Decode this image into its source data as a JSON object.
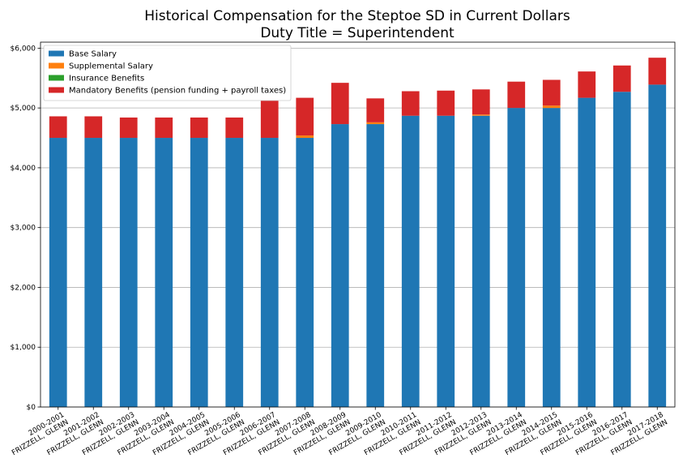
{
  "chart_data": {
    "type": "bar",
    "stacked": true,
    "title": "Historical Compensation for the Steptoe SD in Current Dollars",
    "subtitle": "Duty Title = Superintendent",
    "xlabel": "",
    "ylabel": "",
    "ylim": [
      0,
      6100
    ],
    "yticks": [
      0,
      1000,
      2000,
      3000,
      4000,
      5000,
      6000
    ],
    "ytick_labels": [
      "$0",
      "$1,000",
      "$2,000",
      "$3,000",
      "$4,000",
      "$5,000",
      "$6,000"
    ],
    "grid": "y",
    "legend_position": "top-left",
    "categories": [
      [
        "2000-2001",
        "FRIZZELL, GLENN"
      ],
      [
        "2001-2002",
        "FRIZZELL, GLENN"
      ],
      [
        "2002-2003",
        "FRIZZELL, GLENN"
      ],
      [
        "2003-2004",
        "FRIZZELL, GLENN"
      ],
      [
        "2004-2005",
        "FRIZZELL, GLENN"
      ],
      [
        "2005-2006",
        "FRIZZELL, GLENN"
      ],
      [
        "2006-2007",
        "FRIZZELL, GLENN"
      ],
      [
        "2007-2008",
        "FRIZZELL, GLENN"
      ],
      [
        "2008-2009",
        "FRIZZELL, GLENN"
      ],
      [
        "2009-2010",
        "FRIZZELL, GLENN"
      ],
      [
        "2010-2011",
        "FRIZZELL, GLENN"
      ],
      [
        "2011-2012",
        "FRIZZELL, GLENN"
      ],
      [
        "2012-2013",
        "FRIZZELL, GLENN"
      ],
      [
        "2013-2014",
        "FRIZZELL, GLENN"
      ],
      [
        "2014-2015",
        "FRIZZELL, GLENN"
      ],
      [
        "2015-2016",
        "FRIZZELL, GLENN"
      ],
      [
        "2016-2017",
        "FRIZZELL, GLENN"
      ],
      [
        "2017-2018",
        "FRIZZELL, GLENN"
      ]
    ],
    "series": [
      {
        "name": "Base Salary",
        "color": "#1f77b4",
        "values": [
          4500,
          4500,
          4500,
          4500,
          4500,
          4500,
          4500,
          4500,
          4730,
          4730,
          4870,
          4870,
          4870,
          5000,
          5000,
          5170,
          5270,
          5390
        ]
      },
      {
        "name": "Supplemental Salary",
        "color": "#ff7f0e",
        "values": [
          0,
          0,
          0,
          0,
          0,
          0,
          0,
          40,
          0,
          30,
          0,
          0,
          20,
          0,
          40,
          0,
          0,
          0
        ]
      },
      {
        "name": "Insurance Benefits",
        "color": "#2ca02c",
        "values": [
          0,
          0,
          0,
          0,
          0,
          0,
          0,
          0,
          0,
          0,
          0,
          0,
          0,
          0,
          0,
          0,
          0,
          0
        ]
      },
      {
        "name": "Mandatory Benefits (pension funding + payroll taxes)",
        "color": "#d62728",
        "values": [
          360,
          360,
          340,
          340,
          340,
          340,
          630,
          630,
          690,
          400,
          410,
          420,
          420,
          440,
          430,
          440,
          440,
          450
        ]
      }
    ]
  }
}
